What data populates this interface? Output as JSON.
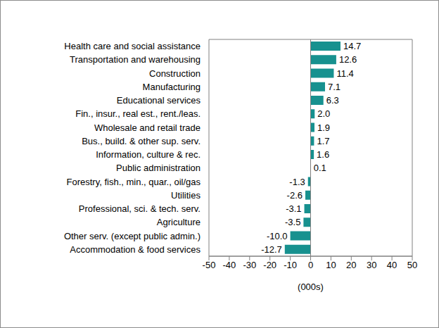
{
  "chart_data": {
    "type": "bar",
    "orientation": "horizontal",
    "categories": [
      "Health care and social assistance",
      "Transportation and warehousing",
      "Construction",
      "Manufacturing",
      "Educational services",
      "Fin., insur., real est., rent./leas.",
      "Wholesale and retail trade",
      "Bus., build. & other sup. serv.",
      "Information, culture & rec.",
      "Public administration",
      "Forestry, fish., min., quar., oil/gas",
      "Utilities",
      "Professional, sci. & tech. serv.",
      "Agriculture",
      "Other serv. (except public admin.)",
      "Accommodation & food services"
    ],
    "values": [
      14.7,
      12.6,
      11.4,
      7.1,
      6.3,
      2.0,
      1.9,
      1.7,
      1.6,
      0.1,
      -1.3,
      -2.6,
      -3.1,
      -3.5,
      -10.0,
      -12.7
    ],
    "value_labels": [
      "14.7",
      "12.6",
      "11.4",
      "7.1",
      "6.3",
      "2.0",
      "1.9",
      "1.7",
      "1.6",
      "0.1",
      "-1.3",
      "-2.6",
      "-3.1",
      "-3.5",
      "-10.0",
      "-12.7"
    ],
    "data_labels": true,
    "color": "#17918f",
    "xlim": [
      -50,
      50
    ],
    "xticks": [
      -50,
      -40,
      -30,
      -20,
      -10,
      0,
      10,
      20,
      30,
      40,
      50
    ],
    "x_label": "(000s)",
    "grid": false
  }
}
